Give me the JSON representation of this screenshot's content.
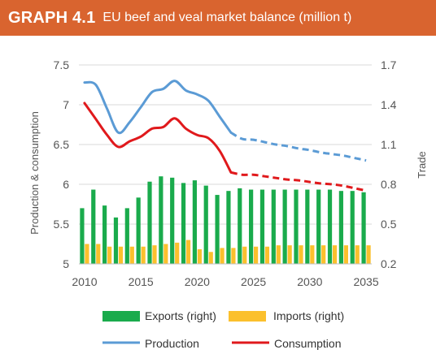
{
  "header": {
    "graph_id": "GRAPH 4.1",
    "title": "EU beef and veal market balance (million t)",
    "color": "#d9642f"
  },
  "chart_data": {
    "type": "bar+line",
    "title": "EU beef and veal market balance (million t)",
    "x_ticks": [
      "2010",
      "2015",
      "2020",
      "2025",
      "2030",
      "2035"
    ],
    "ylabel_left": "Production & consumption",
    "ylabel_right": "Trade",
    "yticks_left": [
      "5",
      "5.5",
      "6",
      "6.5",
      "7",
      "7.5"
    ],
    "yticks_right": [
      "0.2",
      "0.5",
      "0.8",
      "1.1",
      "1.4",
      "1.7"
    ],
    "ylim_left": [
      5,
      7.5
    ],
    "ylim_right": [
      0.2,
      1.7
    ],
    "years": [
      2010,
      2011,
      2012,
      2013,
      2014,
      2015,
      2016,
      2017,
      2018,
      2019,
      2020,
      2021,
      2022,
      2023,
      2024,
      2025,
      2026,
      2027,
      2028,
      2029,
      2030,
      2031,
      2032,
      2033,
      2034,
      2035
    ],
    "projection_start_year": 2023,
    "legend_position": "bottom",
    "series": [
      {
        "name": "Exports (right)",
        "kind": "bar",
        "axis": "right",
        "color": "#1aab4c",
        "values": [
          0.62,
          0.76,
          0.64,
          0.55,
          0.62,
          0.7,
          0.82,
          0.86,
          0.85,
          0.81,
          0.83,
          0.79,
          0.72,
          0.75,
          0.77,
          0.76,
          0.76,
          0.76,
          0.76,
          0.76,
          0.76,
          0.76,
          0.76,
          0.75,
          0.75,
          0.74
        ]
      },
      {
        "name": "Imports (right)",
        "kind": "bar",
        "axis": "right",
        "color": "#fbc02d",
        "values": [
          0.35,
          0.35,
          0.33,
          0.33,
          0.33,
          0.33,
          0.34,
          0.35,
          0.36,
          0.38,
          0.31,
          0.29,
          0.32,
          0.32,
          0.33,
          0.33,
          0.33,
          0.34,
          0.34,
          0.34,
          0.34,
          0.34,
          0.34,
          0.34,
          0.34,
          0.34
        ]
      },
      {
        "name": "Production",
        "kind": "line",
        "axis": "left",
        "color": "#5b9bd5",
        "values": [
          7.28,
          7.25,
          6.95,
          6.65,
          6.78,
          6.97,
          7.16,
          7.2,
          7.3,
          7.18,
          7.13,
          7.05,
          6.85,
          6.65,
          6.57,
          6.56,
          6.53,
          6.5,
          6.48,
          6.45,
          6.43,
          6.4,
          6.38,
          6.36,
          6.33,
          6.3
        ]
      },
      {
        "name": "Consumption",
        "kind": "line",
        "axis": "left",
        "color": "#e0191c",
        "values": [
          7.02,
          6.82,
          6.62,
          6.47,
          6.54,
          6.6,
          6.7,
          6.72,
          6.83,
          6.7,
          6.62,
          6.58,
          6.42,
          6.15,
          6.12,
          6.12,
          6.1,
          6.08,
          6.06,
          6.05,
          6.03,
          6.01,
          6.0,
          5.98,
          5.95,
          5.92
        ]
      }
    ]
  }
}
